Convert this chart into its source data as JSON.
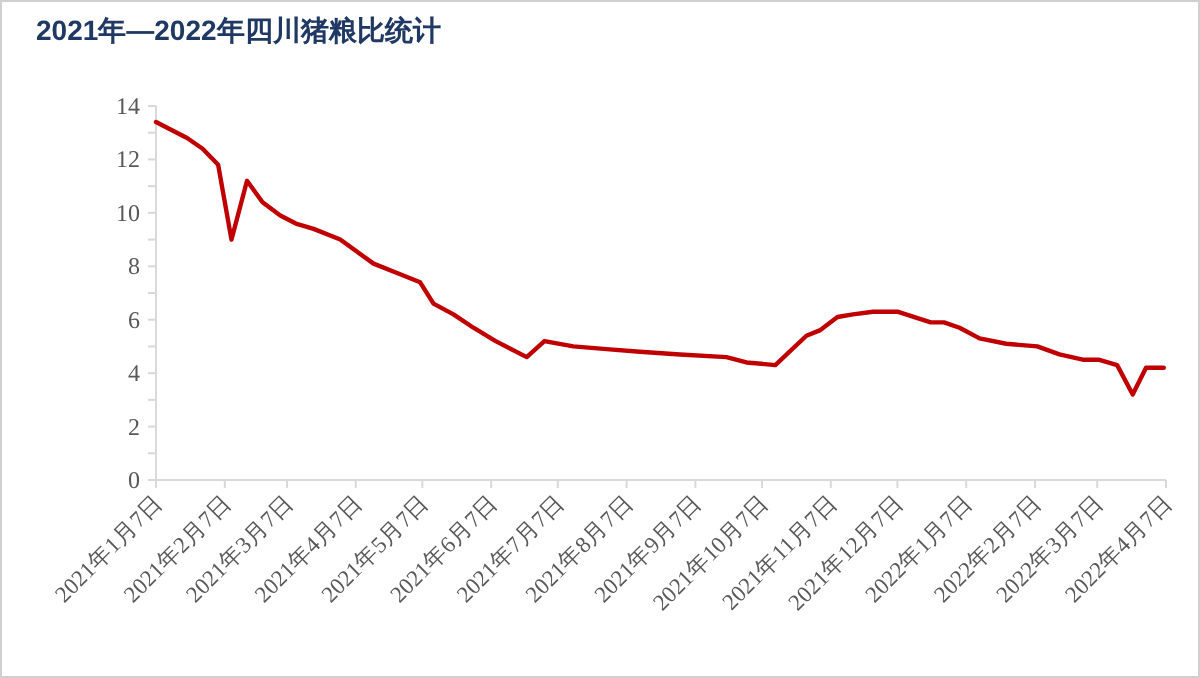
{
  "chart_data": {
    "type": "line",
    "title": "2021年—2022年四川猪粮比统计",
    "x": [
      "2021-01-07",
      "2021-01-21",
      "2021-01-28",
      "2021-02-04",
      "2021-02-10",
      "2021-02-17",
      "2021-02-24",
      "2021-03-04",
      "2021-03-11",
      "2021-03-19",
      "2021-03-31",
      "2021-04-15",
      "2021-04-27",
      "2021-05-06",
      "2021-05-12",
      "2021-05-21",
      "2021-05-30",
      "2021-06-09",
      "2021-06-23",
      "2021-07-01",
      "2021-07-14",
      "2021-07-29",
      "2021-08-13",
      "2021-08-31",
      "2021-09-21",
      "2021-09-30",
      "2021-10-13",
      "2021-10-27",
      "2021-11-02",
      "2021-11-10",
      "2021-11-17",
      "2021-11-26",
      "2021-12-07",
      "2021-12-22",
      "2021-12-28",
      "2022-01-04",
      "2022-01-13",
      "2022-01-25",
      "2022-02-08",
      "2022-02-18",
      "2022-03-01",
      "2022-03-08",
      "2022-03-16",
      "2022-03-23",
      "2022-03-29",
      "2022-04-06"
    ],
    "series": [
      {
        "color": "#c00000",
        "values": [
          13.4,
          12.8,
          12.4,
          11.8,
          9.0,
          11.2,
          10.4,
          9.9,
          9.6,
          9.4,
          9.0,
          8.1,
          7.7,
          7.4,
          6.6,
          6.2,
          5.7,
          5.2,
          4.6,
          5.2,
          5.0,
          4.9,
          4.8,
          4.7,
          4.6,
          4.4,
          4.3,
          5.4,
          5.6,
          6.1,
          6.2,
          6.3,
          6.3,
          5.9,
          5.9,
          5.7,
          5.3,
          5.1,
          5.0,
          4.7,
          4.5,
          4.5,
          4.3,
          3.2,
          4.2,
          4.2
        ]
      }
    ],
    "xlim": [
      "2021-01-07",
      "2022-04-07"
    ],
    "xticks": [
      {
        "value": "2021-01-07",
        "label": "2021年1月7日"
      },
      {
        "value": "2021-02-07",
        "label": "2021年2月7日"
      },
      {
        "value": "2021-03-07",
        "label": "2021年3月7日"
      },
      {
        "value": "2021-04-07",
        "label": "2021年4月7日"
      },
      {
        "value": "2021-05-07",
        "label": "2021年5月7日"
      },
      {
        "value": "2021-06-07",
        "label": "2021年6月7日"
      },
      {
        "value": "2021-07-07",
        "label": "2021年7月7日"
      },
      {
        "value": "2021-08-07",
        "label": "2021年8月7日"
      },
      {
        "value": "2021-09-07",
        "label": "2021年9月7日"
      },
      {
        "value": "2021-10-07",
        "label": "2021年10月7日"
      },
      {
        "value": "2021-11-07",
        "label": "2021年11月7日"
      },
      {
        "value": "2021-12-07",
        "label": "2021年12月7日"
      },
      {
        "value": "2022-01-07",
        "label": "2022年1月7日"
      },
      {
        "value": "2022-02-07",
        "label": "2022年2月7日"
      },
      {
        "value": "2022-03-07",
        "label": "2022年3月7日"
      },
      {
        "value": "2022-04-07",
        "label": "2022年4月7日"
      }
    ],
    "ylim": [
      0,
      14
    ],
    "yticks": [
      0,
      {
        "value": 1,
        "label": null
      },
      2,
      {
        "value": 3,
        "label": null
      },
      4,
      {
        "value": 5,
        "label": null
      },
      6,
      {
        "value": 7,
        "label": null
      },
      8,
      {
        "value": 9,
        "label": null
      },
      10,
      {
        "value": 11,
        "label": null
      },
      12,
      {
        "value": 13,
        "label": null
      },
      14
    ],
    "grid": false,
    "marker": "none",
    "line_style": "solid"
  }
}
